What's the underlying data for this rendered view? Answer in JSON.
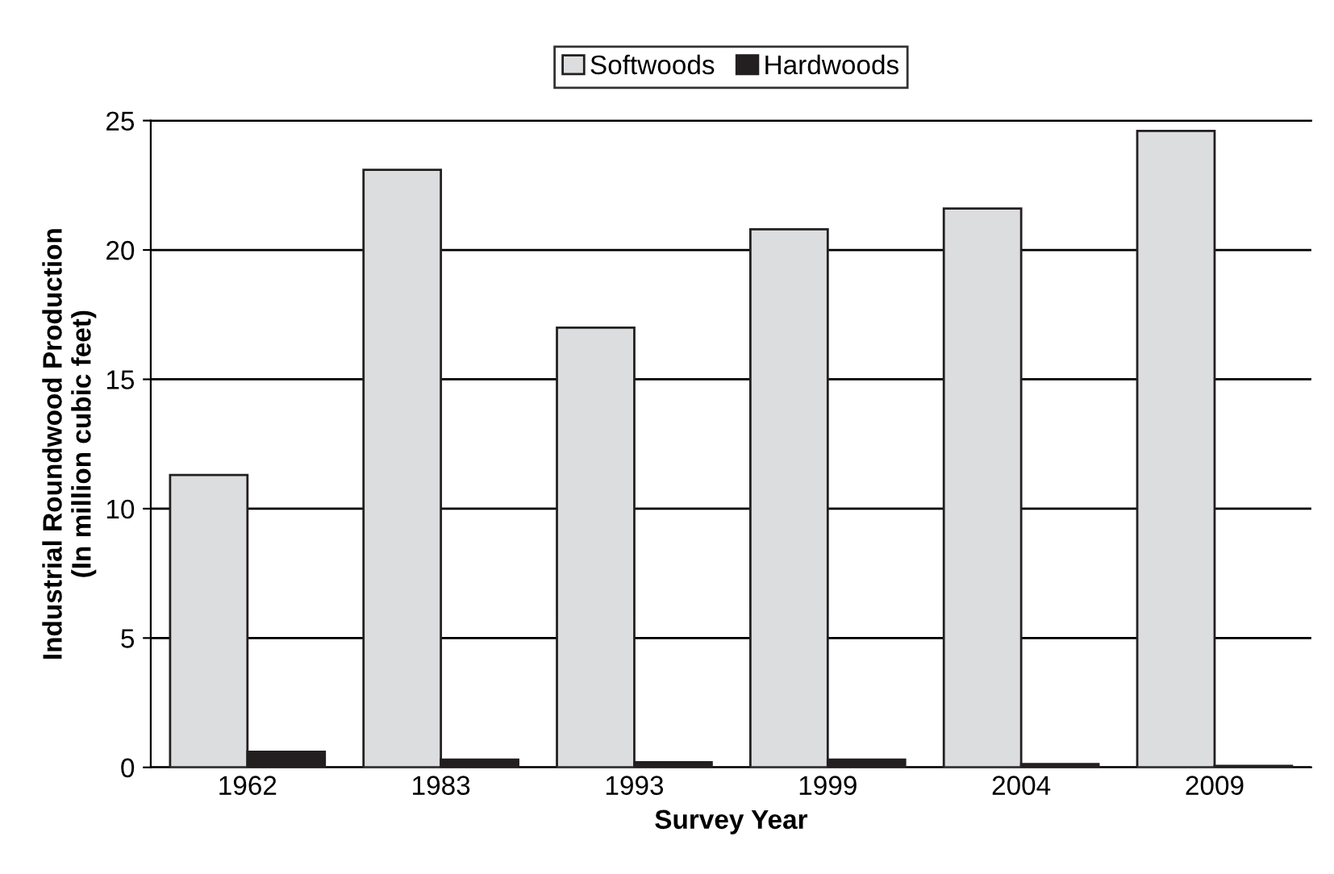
{
  "chart_data": {
    "type": "bar",
    "xlabel": "Survey Year",
    "ylabel": "Industrial Roundwood Production\n(In million cubic feet)",
    "categories": [
      "1962",
      "1983",
      "1993",
      "1999",
      "2004",
      "2009"
    ],
    "series": [
      {
        "name": "Softwoods",
        "color": "#dcdddf",
        "values": [
          11.3,
          23.1,
          17.0,
          20.8,
          21.6,
          24.6
        ]
      },
      {
        "name": "Hardwoods",
        "color": "#231f20",
        "values": [
          0.6,
          0.3,
          0.2,
          0.3,
          0.13,
          0.06
        ]
      }
    ],
    "ylim": [
      0,
      25
    ],
    "yticks": [
      0,
      5,
      10,
      15,
      20,
      25
    ],
    "grid": "y",
    "legend": "top"
  }
}
